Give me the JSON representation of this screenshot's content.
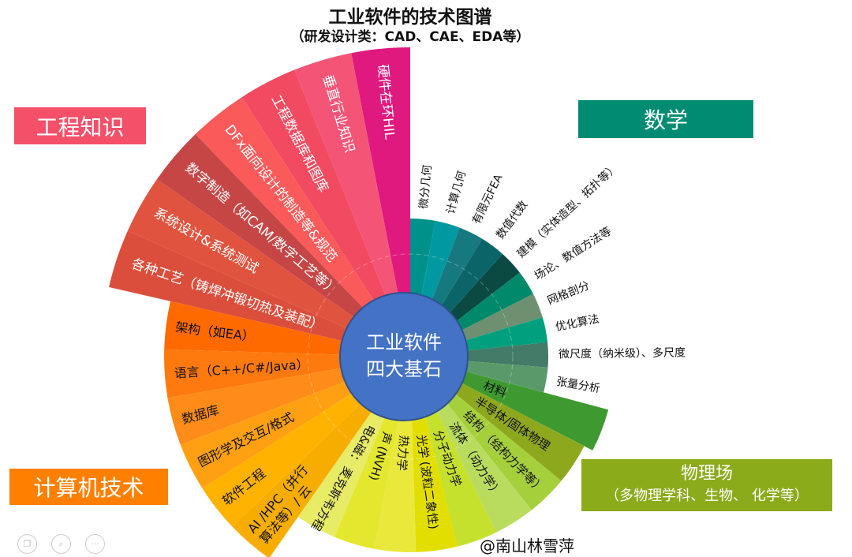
{
  "title": "工业软件的技术图谱",
  "subtitle": "（研发设计类：CAD、CAE、EDA等）",
  "center": {
    "line1": "工业软件",
    "line2": "四大基石",
    "color": "#4472c4"
  },
  "categories": {
    "engineering": "工程知识",
    "math": "数学",
    "computing": "计算机技术",
    "physics": "物理场",
    "physics_sub": "（多物理学科、生物、 化学等）"
  },
  "watermark": "@南山林雪萍",
  "toolbar_icons": [
    "copy-icon",
    "search-icon",
    "more-icon"
  ],
  "groups": {
    "engineering": [
      {
        "lines": [
          "硬件在环HIL"
        ],
        "color": "#e0197e"
      },
      {
        "lines": [
          "垂直行业知识"
        ],
        "color": "#f45577"
      },
      {
        "lines": [
          "工程数据库和图库"
        ],
        "color": "#f24a60"
      },
      {
        "lines": [
          "DFx面向设计的制造等&规范"
        ],
        "color": "#fa5a5a"
      },
      {
        "lines": [
          "数字制造（如CAM/数字工艺等）"
        ],
        "color": "#c64646"
      },
      {
        "lines": [
          "系统设计&系统测试"
        ],
        "color": "#e0543f"
      },
      {
        "lines": [
          "各种工艺（铸焊冲锻切热及装配）"
        ],
        "color": "#dc4e3c"
      }
    ],
    "computing": [
      {
        "lines": [
          "架构（如EA）"
        ],
        "color": "#ff6a00"
      },
      {
        "lines": [
          "语言（C++/C#/Java）"
        ],
        "color": "#ff7a0e"
      },
      {
        "lines": [
          "数据库"
        ],
        "color": "#ff8c18"
      },
      {
        "lines": [
          "图形学及交互/格式"
        ],
        "color": "#ffa012"
      },
      {
        "lines": [
          "软件工程"
        ],
        "color": "#ffb300"
      },
      {
        "lines": [
          "AI /HPC（并行",
          "算法等）/ 云"
        ],
        "color": "#f6ad00"
      }
    ],
    "physics": [
      {
        "lines": [
          "材料"
        ],
        "color": "#3e9a30"
      },
      {
        "lines": [
          "半导体/固体物理"
        ],
        "color": "#8ea81e"
      },
      {
        "lines": [
          "结构",
          "（结构力学等）"
        ],
        "color": "#a6cf3c"
      },
      {
        "lines": [
          "流体",
          "（动力学）"
        ],
        "color": "#b9dc5e"
      },
      {
        "lines": [
          "分子动力学"
        ],
        "color": "#c6e02e"
      },
      {
        "lines": [
          "光学",
          "(波粒二象性)"
        ],
        "color": "#e2de00"
      },
      {
        "lines": [
          "热力学"
        ],
        "color": "#ebe83c"
      },
      {
        "lines": [
          "声",
          "(NVH)"
        ],
        "color": "#e3e72e"
      },
      {
        "lines": [
          "电&磁：",
          "麦克斯韦方程"
        ],
        "color": "#e7eb66"
      }
    ],
    "math": [
      {
        "lines": [
          "微分几何"
        ],
        "color": "#00928a"
      },
      {
        "lines": [
          "计算几何"
        ],
        "color": "#0099a2"
      },
      {
        "lines": [
          "有限元FEA"
        ],
        "color": "#16797f"
      },
      {
        "lines": [
          "数值代数"
        ],
        "color": "#0b6468"
      },
      {
        "lines": [
          "建模（实体造型、拓扑等）"
        ],
        "color": "#0a4a42"
      },
      {
        "lines": [
          "场论、数值方法等"
        ],
        "color": "#00896a"
      },
      {
        "lines": [
          "网格剖分"
        ],
        "color": "#6e9070"
      },
      {
        "lines": [
          "优化算法"
        ],
        "color": "#00a07e"
      },
      {
        "lines": [
          "微尺度（纳米级）、多尺度"
        ],
        "color": "#437a68"
      },
      {
        "lines": [
          "张量分析"
        ],
        "color": "#5a9a6a"
      }
    ]
  }
}
